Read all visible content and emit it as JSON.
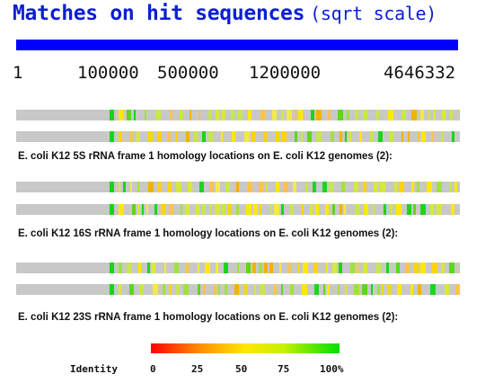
{
  "header": {
    "title": "Matches on hit sequences",
    "scale_note": "(sqrt scale)"
  },
  "axis": {
    "ticks": [
      "1",
      "100000",
      "500000",
      "1200000",
      "4646332"
    ]
  },
  "tracks": [
    {
      "caption": "E. coli K12 5S rRNA frame 1 homology locations on E. coli K12 genomes (2):",
      "hit_count": 2
    },
    {
      "caption": "E. coli K12 16S rRNA frame 1 homology locations on E. coli K12 genomes (2):",
      "hit_count": 2
    },
    {
      "caption": "E. coli K12 23S rRNA frame 1 homology locations on E. coli K12 genomes (2):",
      "hit_count": 2
    }
  ],
  "colors": {
    "title": "#0b1fd4",
    "axis_bar": "#0000ff",
    "track_background": "#c8c8c8",
    "identity_low": "#ff0000",
    "identity_mid": "#ffe800",
    "identity_high": "#00e000"
  },
  "legend": {
    "label": "Identity",
    "ticks": [
      "0",
      "25",
      "50",
      "75",
      "100%"
    ]
  }
}
